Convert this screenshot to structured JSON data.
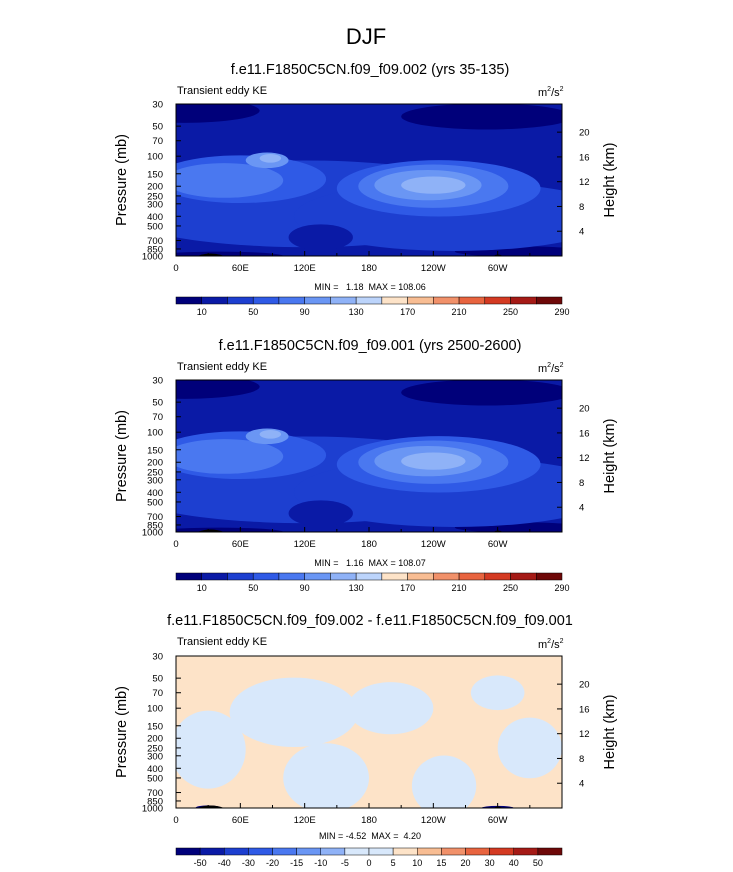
{
  "figure": {
    "title": "DJF"
  },
  "colors": {
    "abs": [
      "#00007a",
      "#0a1aa6",
      "#1d3fd0",
      "#2f5ae6",
      "#4a78f0",
      "#6a96f4",
      "#8fb2f7",
      "#bcd4fb",
      "#fde3c8",
      "#f8bd93",
      "#f1916a",
      "#e8643f",
      "#d43a22",
      "#a51a16",
      "#6e0808"
    ],
    "diff": [
      "#00007a",
      "#0a1aa6",
      "#1d3fd0",
      "#2f5ae6",
      "#4a78f0",
      "#6a96f4",
      "#8fb2f7",
      "#d8e8fb",
      "#fde3c8",
      "#f8bd93",
      "#f1916a",
      "#e8643f",
      "#d43a22",
      "#a51a16",
      "#6e0808"
    ]
  },
  "chart_data": [
    {
      "type": "heatmap",
      "panel": "top",
      "title": "f.e11.F1850C5CN.f09_f09.002 (yrs 35-135)",
      "subtitle": "Transient eddy KE",
      "units_base": "m",
      "units_exp1": "2",
      "units_sep": "/s",
      "units_exp2": "2",
      "ylabel": "Pressure (mb)",
      "ylabel_right": "Height (km)",
      "pressure_ticks": [
        "30",
        "50",
        "70",
        "100",
        "150",
        "200",
        "250",
        "300",
        "400",
        "500",
        "700",
        "850",
        "1000"
      ],
      "pressure_values": [
        30,
        50,
        70,
        100,
        150,
        200,
        250,
        300,
        400,
        500,
        700,
        850,
        1000
      ],
      "height_ticks": [
        "20",
        "16",
        "12",
        "8",
        "4"
      ],
      "height_values": [
        20,
        16,
        12,
        8,
        4
      ],
      "x_ticks": [
        "0",
        "60E",
        "120E",
        "180",
        "120W",
        "60W"
      ],
      "x_values": [
        0,
        60,
        120,
        180,
        240,
        300
      ],
      "xlim": [
        0,
        360
      ],
      "ylim_mb": [
        1000,
        30
      ],
      "minmax": "MIN =   1.18  MAX = 108.06",
      "colorbar_ticks": [
        "10",
        "50",
        "90",
        "130",
        "170",
        "210",
        "250",
        "290"
      ],
      "colorbar_levels": 15,
      "fill_level": 1,
      "contours": [
        {
          "level": 0,
          "lon": 8,
          "p": 35,
          "rlon": 70,
          "rp": 0.28
        },
        {
          "level": 0,
          "lon": 290,
          "p": 40,
          "rlon": 80,
          "rp": 0.3
        },
        {
          "level": 0,
          "lon": 40,
          "p": 1000,
          "rlon": 60,
          "rp": 0.1
        },
        {
          "level": 0,
          "lon": 320,
          "p": 900,
          "rlon": 60,
          "rp": 0.12
        },
        {
          "level": 2,
          "lon": 120,
          "p": 300,
          "rlon": 190,
          "rp": 1.0
        },
        {
          "level": 2,
          "lon": 260,
          "p": 400,
          "rlon": 150,
          "rp": 0.8
        },
        {
          "level": 3,
          "lon": 60,
          "p": 170,
          "rlon": 80,
          "rp": 0.55
        },
        {
          "level": 3,
          "lon": 245,
          "p": 210,
          "rlon": 95,
          "rp": 0.65
        },
        {
          "level": 4,
          "lon": 45,
          "p": 175,
          "rlon": 55,
          "rp": 0.4
        },
        {
          "level": 4,
          "lon": 240,
          "p": 200,
          "rlon": 70,
          "rp": 0.5
        },
        {
          "level": 5,
          "lon": 235,
          "p": 195,
          "rlon": 50,
          "rp": 0.35
        },
        {
          "level": 5,
          "lon": 85,
          "p": 110,
          "rlon": 20,
          "rp": 0.18
        },
        {
          "level": 6,
          "lon": 240,
          "p": 195,
          "rlon": 30,
          "rp": 0.2
        },
        {
          "level": 6,
          "lon": 88,
          "p": 105,
          "rlon": 10,
          "rp": 0.1
        },
        {
          "level": 1,
          "lon": 135,
          "p": 650,
          "rlon": 30,
          "rp": 0.3
        }
      ]
    },
    {
      "type": "heatmap",
      "panel": "middle",
      "title": "f.e11.F1850C5CN.f09_f09.001 (yrs 2500-2600)",
      "subtitle": "Transient eddy KE",
      "units_base": "m",
      "units_exp1": "2",
      "units_sep": "/s",
      "units_exp2": "2",
      "ylabel": "Pressure (mb)",
      "ylabel_right": "Height (km)",
      "pressure_ticks": [
        "30",
        "50",
        "70",
        "100",
        "150",
        "200",
        "250",
        "300",
        "400",
        "500",
        "700",
        "850",
        "1000"
      ],
      "pressure_values": [
        30,
        50,
        70,
        100,
        150,
        200,
        250,
        300,
        400,
        500,
        700,
        850,
        1000
      ],
      "height_ticks": [
        "20",
        "16",
        "12",
        "8",
        "4"
      ],
      "height_values": [
        20,
        16,
        12,
        8,
        4
      ],
      "x_ticks": [
        "0",
        "60E",
        "120E",
        "180",
        "120W",
        "60W"
      ],
      "x_values": [
        0,
        60,
        120,
        180,
        240,
        300
      ],
      "xlim": [
        0,
        360
      ],
      "ylim_mb": [
        1000,
        30
      ],
      "minmax": "MIN =   1.16  MAX = 108.07",
      "colorbar_ticks": [
        "10",
        "50",
        "90",
        "130",
        "170",
        "210",
        "250",
        "290"
      ],
      "colorbar_levels": 15,
      "fill_level": 1,
      "contours": [
        {
          "level": 0,
          "lon": 8,
          "p": 35,
          "rlon": 70,
          "rp": 0.28
        },
        {
          "level": 0,
          "lon": 290,
          "p": 40,
          "rlon": 80,
          "rp": 0.3
        },
        {
          "level": 0,
          "lon": 40,
          "p": 1000,
          "rlon": 60,
          "rp": 0.1
        },
        {
          "level": 0,
          "lon": 320,
          "p": 900,
          "rlon": 60,
          "rp": 0.12
        },
        {
          "level": 2,
          "lon": 120,
          "p": 300,
          "rlon": 190,
          "rp": 1.0
        },
        {
          "level": 2,
          "lon": 260,
          "p": 400,
          "rlon": 150,
          "rp": 0.8
        },
        {
          "level": 3,
          "lon": 60,
          "p": 170,
          "rlon": 80,
          "rp": 0.55
        },
        {
          "level": 3,
          "lon": 245,
          "p": 210,
          "rlon": 95,
          "rp": 0.65
        },
        {
          "level": 4,
          "lon": 45,
          "p": 175,
          "rlon": 55,
          "rp": 0.4
        },
        {
          "level": 4,
          "lon": 240,
          "p": 200,
          "rlon": 70,
          "rp": 0.5
        },
        {
          "level": 5,
          "lon": 235,
          "p": 195,
          "rlon": 50,
          "rp": 0.35
        },
        {
          "level": 5,
          "lon": 85,
          "p": 110,
          "rlon": 20,
          "rp": 0.18
        },
        {
          "level": 6,
          "lon": 240,
          "p": 195,
          "rlon": 30,
          "rp": 0.2
        },
        {
          "level": 6,
          "lon": 88,
          "p": 105,
          "rlon": 10,
          "rp": 0.1
        },
        {
          "level": 1,
          "lon": 135,
          "p": 650,
          "rlon": 30,
          "rp": 0.3
        }
      ]
    },
    {
      "type": "heatmap",
      "panel": "difference",
      "title": "f.e11.F1850C5CN.f09_f09.002 - f.e11.F1850C5CN.f09_f09.001",
      "subtitle": "Transient eddy KE",
      "units_base": "m",
      "units_exp1": "2",
      "units_sep": "/s",
      "units_exp2": "2",
      "ylabel": "Pressure (mb)",
      "ylabel_right": "Height (km)",
      "pressure_ticks": [
        "30",
        "50",
        "70",
        "100",
        "150",
        "200",
        "250",
        "300",
        "400",
        "500",
        "700",
        "850",
        "1000"
      ],
      "pressure_values": [
        30,
        50,
        70,
        100,
        150,
        200,
        250,
        300,
        400,
        500,
        700,
        850,
        1000
      ],
      "height_ticks": [
        "20",
        "16",
        "12",
        "8",
        "4"
      ],
      "height_values": [
        20,
        16,
        12,
        8,
        4
      ],
      "x_ticks": [
        "0",
        "60E",
        "120E",
        "180",
        "120W",
        "60W"
      ],
      "x_values": [
        0,
        60,
        120,
        180,
        240,
        300
      ],
      "xlim": [
        0,
        360
      ],
      "ylim_mb": [
        1000,
        30
      ],
      "minmax": "MIN = -4.52  MAX =  4.20",
      "colorbar_ticks": [
        "-50",
        "-40",
        "-30",
        "-20",
        "-15",
        "-10",
        "-5",
        "0",
        "5",
        "10",
        "15",
        "20",
        "30",
        "40",
        "50"
      ],
      "colorbar_levels": 16,
      "fill_level": 8,
      "contours": [
        {
          "level": 7,
          "lon": 30,
          "p": 260,
          "rlon": 35,
          "rp": 0.9
        },
        {
          "level": 7,
          "lon": 110,
          "p": 110,
          "rlon": 60,
          "rp": 0.8
        },
        {
          "level": 7,
          "lon": 140,
          "p": 500,
          "rlon": 40,
          "rp": 0.8
        },
        {
          "level": 7,
          "lon": 200,
          "p": 100,
          "rlon": 40,
          "rp": 0.6
        },
        {
          "level": 7,
          "lon": 250,
          "p": 600,
          "rlon": 30,
          "rp": 0.7
        },
        {
          "level": 7,
          "lon": 330,
          "p": 250,
          "rlon": 30,
          "rp": 0.7
        },
        {
          "level": 7,
          "lon": 300,
          "p": 70,
          "rlon": 25,
          "rp": 0.4
        },
        {
          "level": 0,
          "lon": 30,
          "p": 1000,
          "rlon": 12,
          "rp": 0.06
        },
        {
          "level": 0,
          "lon": 300,
          "p": 1000,
          "rlon": 15,
          "rp": 0.05
        }
      ]
    }
  ]
}
